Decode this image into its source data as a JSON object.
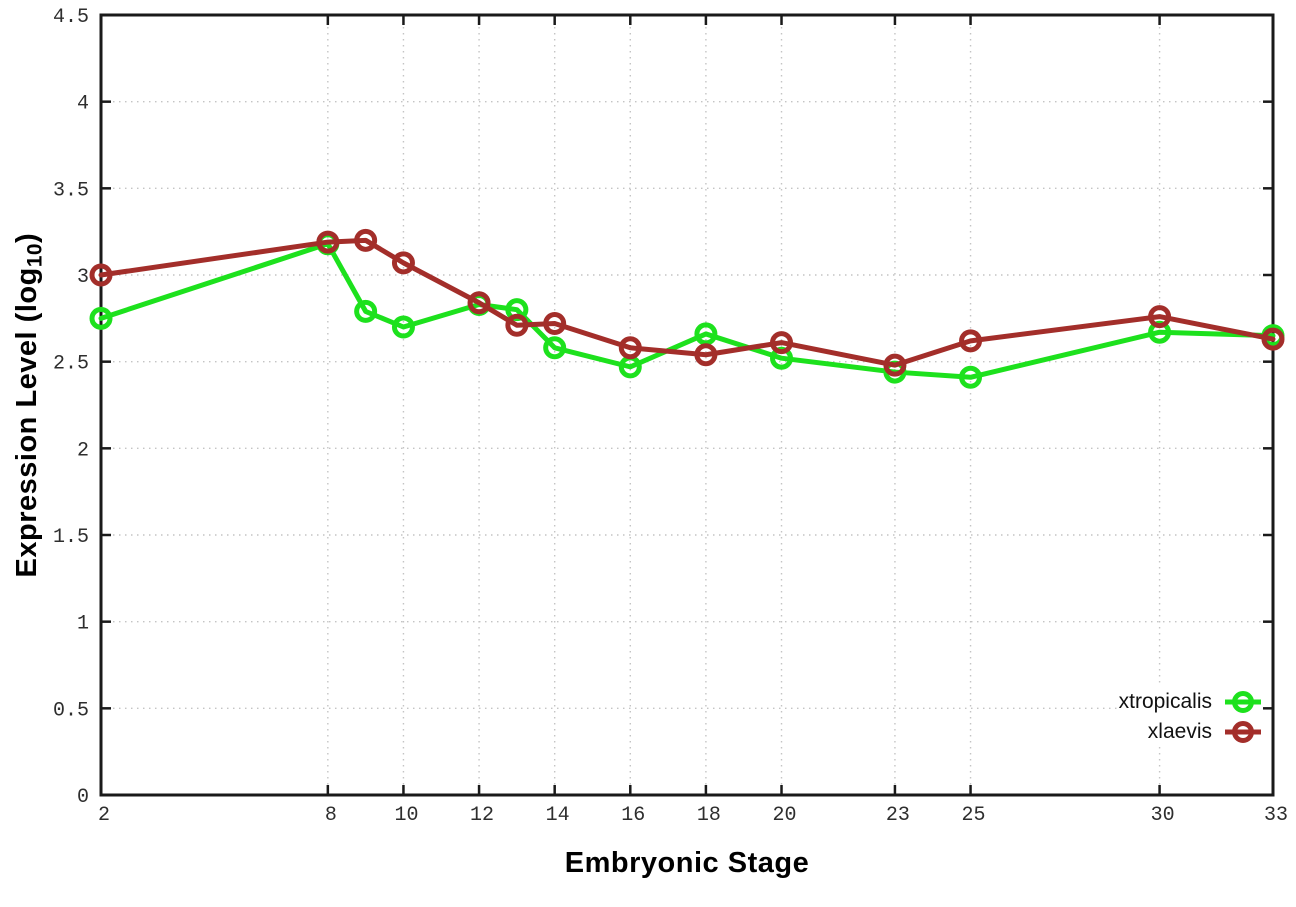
{
  "chart_data": {
    "type": "line",
    "title": "",
    "xlabel": "Embryonic Stage",
    "ylabel_prefix": "Expression Level (log",
    "ylabel_subscript": "10",
    "ylabel_suffix": ")",
    "x": [
      2,
      8,
      9,
      10,
      12,
      13,
      14,
      16,
      18,
      20,
      23,
      25,
      30,
      33
    ],
    "series": [
      {
        "name": "xtropicalis",
        "color": "#1de11d",
        "values": [
          2.75,
          3.18,
          2.79,
          2.7,
          2.83,
          2.8,
          2.58,
          2.47,
          2.66,
          2.52,
          2.44,
          2.41,
          2.67,
          2.65
        ]
      },
      {
        "name": "xlaevis",
        "color": "#a32e2a",
        "values": [
          3.0,
          3.19,
          3.2,
          3.07,
          2.84,
          2.71,
          2.72,
          2.58,
          2.54,
          2.61,
          2.48,
          2.62,
          2.76,
          2.63
        ]
      }
    ],
    "xlim": [
      2,
      33
    ],
    "ylim": [
      0,
      4.5
    ],
    "x_tick_values": [
      2,
      8,
      10,
      12,
      14,
      16,
      18,
      20,
      23,
      25,
      30,
      33
    ],
    "x_tick_labels": [
      "2",
      "8",
      "10",
      "12",
      "14",
      "16",
      "18",
      "20",
      "23",
      "25",
      "30",
      "33"
    ],
    "y_tick_values": [
      0,
      0.5,
      1,
      1.5,
      2,
      2.5,
      3,
      3.5,
      4,
      4.5
    ],
    "y_tick_labels": [
      "0",
      "0.5",
      "1",
      "1.5",
      "2",
      "2.5",
      "3",
      "3.5",
      "4",
      "4.5"
    ],
    "grid": true,
    "legend_position": "bottom-right",
    "colors": {
      "background": "#ffffff",
      "grid": "#c4c4c4",
      "axis": "#1a1a1a",
      "tick_label": "#2e2e2e"
    }
  }
}
